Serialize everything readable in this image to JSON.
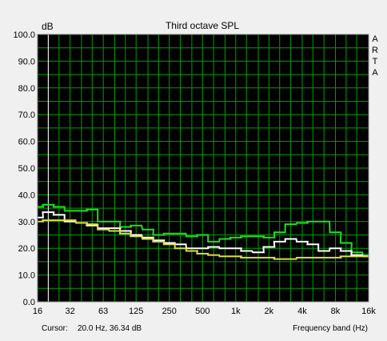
{
  "chart_data": {
    "type": "line",
    "title": "Third octave SPL",
    "ylabel": "dB",
    "xlabel": "Frequency band (Hz)",
    "side_label": [
      "A",
      "R",
      "T",
      "A"
    ],
    "cursor_label": "Cursor:",
    "cursor_value": "20.0 Hz, 36.34 dB",
    "ylim": [
      0,
      100
    ],
    "y_ticks": [
      "0.0",
      "10.0",
      "20.0",
      "30.0",
      "40.0",
      "50.0",
      "60.0",
      "70.0",
      "80.0",
      "90.0",
      "100.0"
    ],
    "x_ticks": [
      "16",
      "32",
      "63",
      "125",
      "250",
      "500",
      "1k",
      "2k",
      "4k",
      "8k",
      "16k"
    ],
    "x_scale": "log",
    "grid": true,
    "background_color": "#000000",
    "grid_color": "#00a000",
    "bands": [
      16,
      20,
      25,
      31.5,
      40,
      50,
      63,
      80,
      100,
      125,
      160,
      200,
      250,
      315,
      400,
      500,
      630,
      800,
      1000,
      1250,
      1600,
      2000,
      2500,
      3150,
      4000,
      5000,
      6300,
      8000,
      10000,
      12500,
      16000
    ],
    "series": [
      {
        "color": "#22dd22",
        "values": [
          35.5,
          36.3,
          35.5,
          34.0,
          34.0,
          34.5,
          30.0,
          30.0,
          28.0,
          28.5,
          27.0,
          25.0,
          25.5,
          25.5,
          24.5,
          25.0,
          22.5,
          23.5,
          24.0,
          24.5,
          24.5,
          24.0,
          26.0,
          29.0,
          29.5,
          30.0,
          30.0,
          26.0,
          22.0,
          18.5,
          17.5
        ]
      },
      {
        "color": "#ffffff",
        "values": [
          31.5,
          33.5,
          32.5,
          30.0,
          29.5,
          28.5,
          27.5,
          27.5,
          26.5,
          25.0,
          24.0,
          23.0,
          22.0,
          21.5,
          20.0,
          20.0,
          20.5,
          20.0,
          20.0,
          19.0,
          18.5,
          20.5,
          22.5,
          23.5,
          22.5,
          21.5,
          19.0,
          20.0,
          19.0,
          17.5,
          17.0
        ]
      },
      {
        "color": "#dddd44",
        "values": [
          30.0,
          30.5,
          30.5,
          30.5,
          29.5,
          29.0,
          27.0,
          26.5,
          25.5,
          24.5,
          23.5,
          22.5,
          21.5,
          20.0,
          19.0,
          18.0,
          17.5,
          17.0,
          17.0,
          16.5,
          16.5,
          16.5,
          16.0,
          16.0,
          16.5,
          16.5,
          16.5,
          16.5,
          17.0,
          17.0,
          17.0
        ]
      }
    ]
  }
}
